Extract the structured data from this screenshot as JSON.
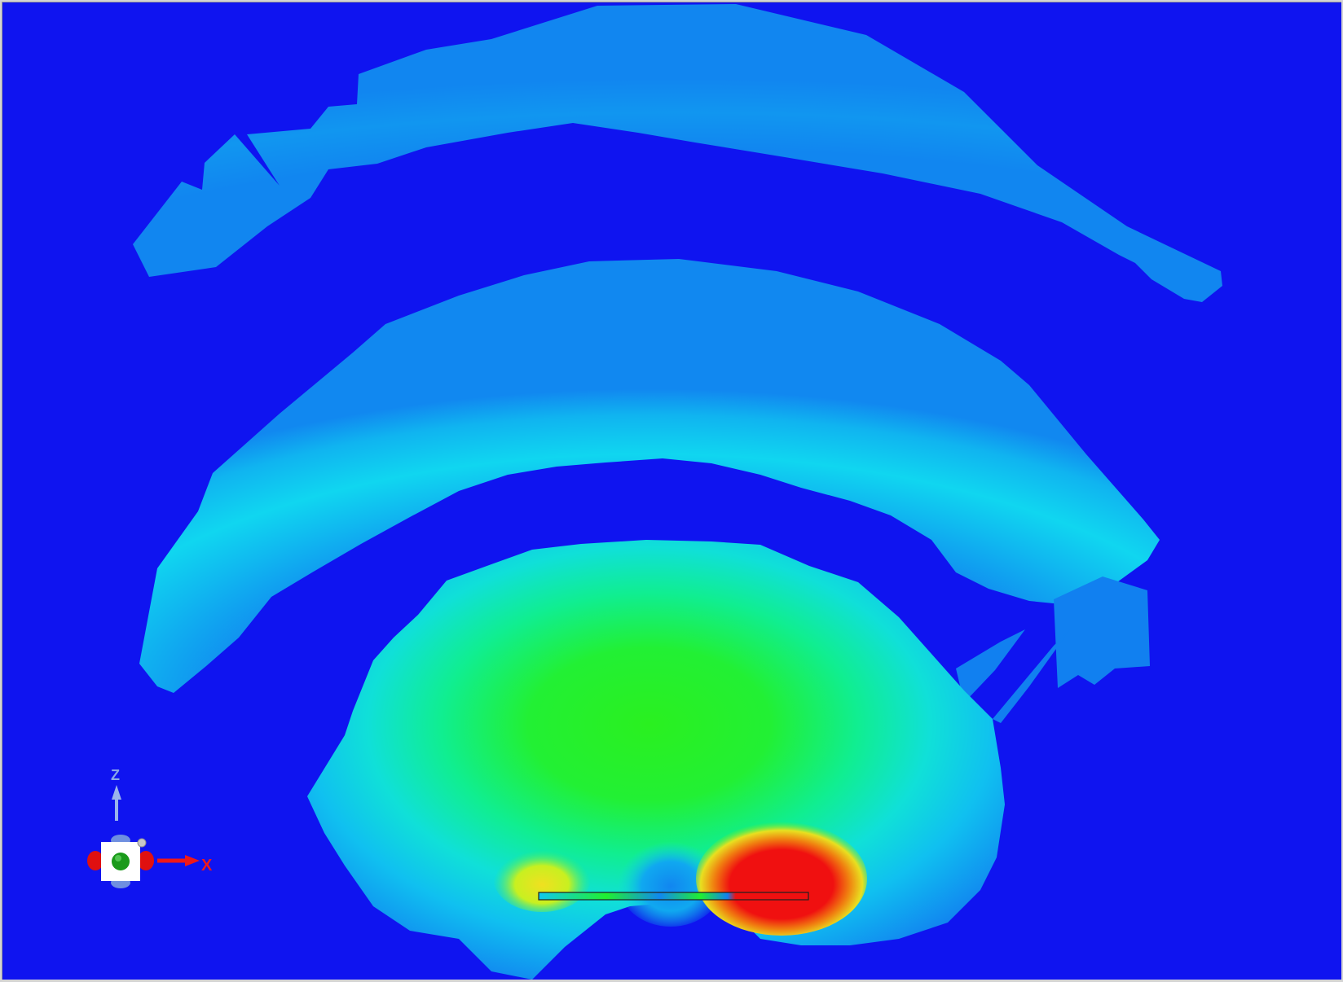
{
  "viewport": {
    "background_color": "#0f14f0",
    "field_colors": {
      "outer_ring": "#1186f0",
      "mid_ring": "#11c8f0",
      "core_green": "#22f024",
      "hotspot_red": "#f01010",
      "hotspot_yellow": "#e8e020"
    }
  },
  "triad": {
    "z_label": "Z",
    "x_label": "X",
    "x_color": "#f01818",
    "z_color": "#8aa8e8",
    "center_icon": "sphere-icon"
  }
}
